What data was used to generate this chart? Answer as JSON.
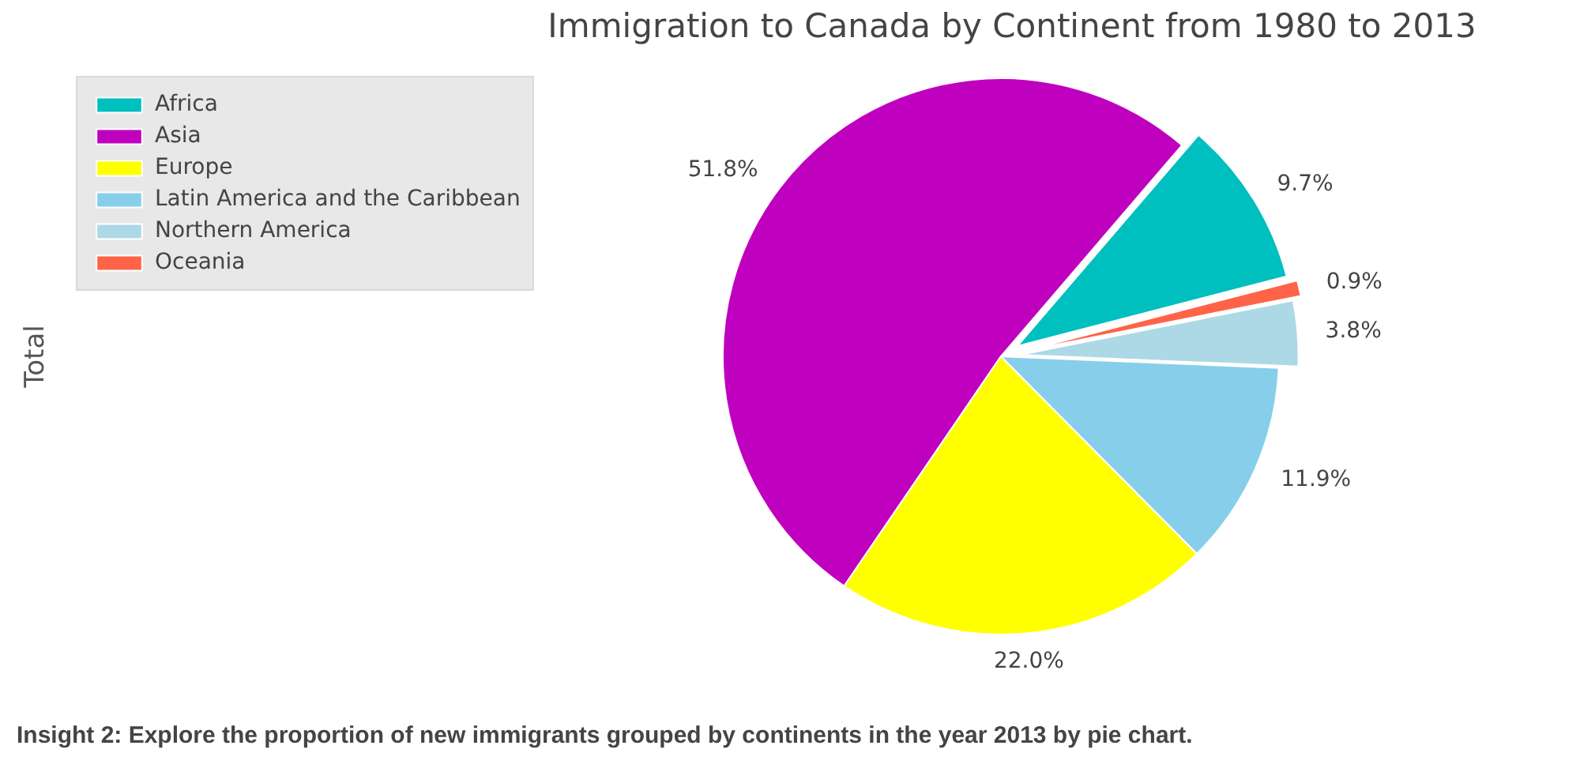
{
  "chart_data": {
    "type": "pie",
    "title": "Immigration to Canada by Continent from 1980 to 2013",
    "ylabel": "Total",
    "categories": [
      "Africa",
      "Asia",
      "Europe",
      "Latin America and the Caribbean",
      "Northern America",
      "Oceania"
    ],
    "values": [
      9.7,
      51.8,
      22.0,
      11.9,
      3.8,
      0.9
    ],
    "value_labels": [
      "9.7%",
      "51.8%",
      "22.0%",
      "11.9%",
      "3.8%",
      "0.9%"
    ],
    "colors": [
      "#00bfbf",
      "#bf00bf",
      "#ffff00",
      "#87ceeb",
      "#add8e6",
      "#ff6347"
    ],
    "legend": "top left",
    "annotations": [
      "Insight 2: Explore the proportion of new immigrants grouped by continents in the year 2013 by pie chart."
    ]
  }
}
